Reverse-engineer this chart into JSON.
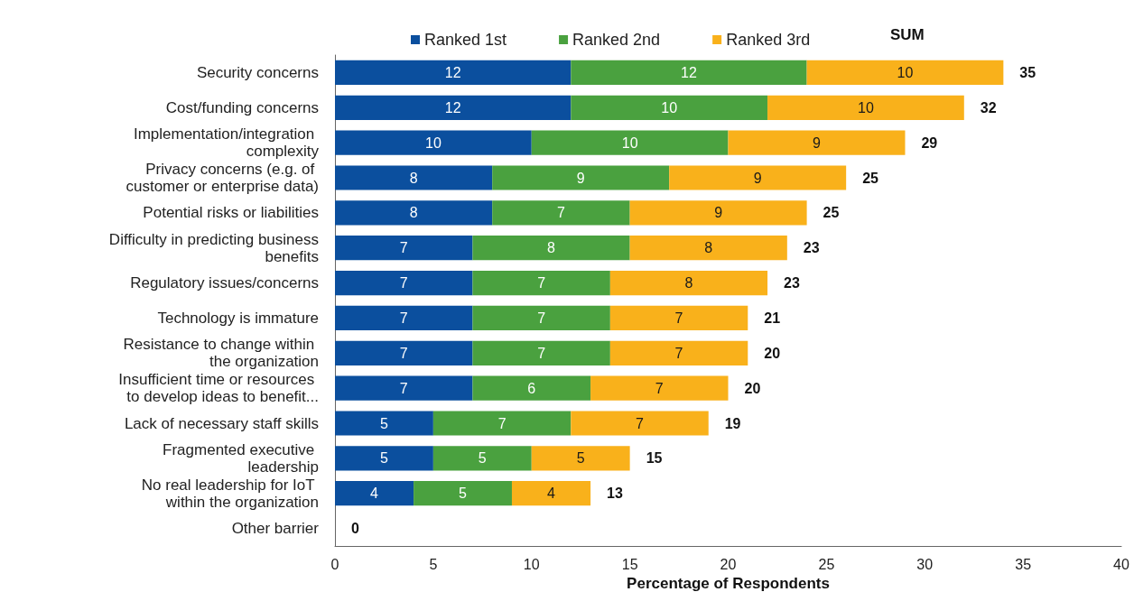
{
  "chart_data": {
    "type": "bar",
    "orientation": "horizontal",
    "stacked": true,
    "categories": [
      "Security concerns",
      "Cost/funding concerns",
      "Implementation/integration complexity",
      "Privacy concerns (e.g. of customer or enterprise data)",
      "Potential risks or liabilities",
      "Difficulty in predicting business benefits",
      "Regulatory issues/concerns",
      "Technology is immature",
      "Resistance to change within the organization",
      "Insufficient time or resources to develop ideas to benefit...",
      "Lack of necessary staff skills",
      "Fragmented executive leadership",
      "No real leadership for IoT within the organization",
      "Other barrier"
    ],
    "series": [
      {
        "name": "Ranked 1st",
        "color": "#0b4f9e",
        "values": [
          12,
          12,
          10,
          8,
          8,
          7,
          7,
          7,
          7,
          7,
          5,
          5,
          4,
          0
        ],
        "value_labels": [
          "12",
          "12",
          "10",
          "8",
          "8",
          "7",
          "7",
          "7",
          "7",
          "7",
          "5",
          "5",
          "4",
          null
        ]
      },
      {
        "name": "Ranked 2nd",
        "color": "#4aa13f",
        "values": [
          12,
          10,
          10,
          9,
          7,
          8,
          7,
          7,
          7,
          6,
          7,
          5,
          5,
          0
        ],
        "value_labels": [
          "12",
          "10",
          "10",
          "9",
          "7",
          "8",
          "7",
          "7",
          "7",
          "6",
          "7",
          "5",
          "5",
          null
        ]
      },
      {
        "name": "Ranked 3rd",
        "color": "#f9b11b",
        "values": [
          10,
          10,
          9,
          9,
          9,
          8,
          8,
          7,
          7,
          7,
          7,
          5,
          4,
          0
        ],
        "value_labels": [
          "10",
          "10",
          "9",
          "9",
          "9",
          "8",
          "8",
          "7",
          "7",
          "7",
          "7",
          "5",
          "4",
          null
        ]
      }
    ],
    "totals": [
      "35",
      "32",
      "29",
      "25",
      "25",
      "23",
      "23",
      "21",
      "20",
      "20",
      "19",
      "15",
      "13",
      "0"
    ],
    "xlabel": "Percentage of Respondents",
    "xlim": [
      0,
      40
    ],
    "xticks": [
      0,
      5,
      10,
      15,
      20,
      25,
      30,
      35,
      40
    ],
    "legend": "top",
    "annotations": [
      "SUM"
    ]
  }
}
